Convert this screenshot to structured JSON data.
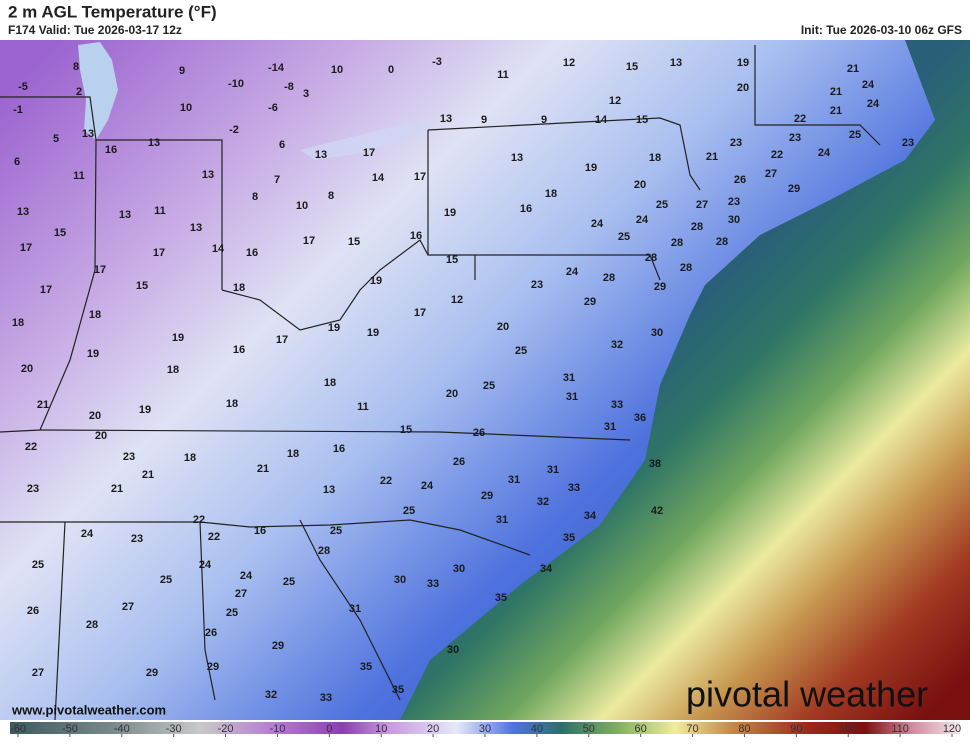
{
  "header": {
    "title": "2 m AGL Temperature (°F)",
    "valid": "F174 Valid: Tue 2026-03-17 12z",
    "init": "Init: Tue 2026-03-10 06z GFS"
  },
  "footer": {
    "website": "www.pivotalweather.com",
    "logo": "pivotal weather"
  },
  "colorbar": {
    "ticks": [
      -60,
      -50,
      -40,
      -30,
      -20,
      -10,
      0,
      10,
      20,
      30,
      40,
      50,
      60,
      70,
      80,
      90,
      100,
      110,
      120
    ]
  },
  "map": {
    "labels": [
      -5,
      2,
      8,
      -1,
      5,
      6,
      13,
      16,
      13,
      9,
      -10,
      -14,
      -8,
      10,
      -6,
      -2,
      3,
      10,
      0,
      -3,
      11,
      12,
      15,
      13,
      19,
      21,
      24,
      20,
      21,
      24,
      12,
      21,
      13,
      9,
      9,
      14,
      15,
      22,
      25,
      23,
      23,
      22,
      24,
      23,
      6,
      13,
      13,
      17,
      11,
      7,
      14,
      17,
      13,
      19,
      18,
      21,
      26,
      27,
      29,
      8,
      10,
      8,
      20,
      18,
      25,
      27,
      23,
      30,
      13,
      13,
      11,
      13,
      19,
      16,
      24,
      24,
      28,
      25,
      28,
      15,
      17,
      17,
      14,
      16,
      17,
      15,
      16,
      28,
      15,
      28,
      28,
      17,
      15,
      18,
      19,
      24,
      28,
      23,
      29,
      17,
      12,
      29,
      18,
      18,
      17,
      20,
      19,
      17,
      19,
      19,
      30,
      16,
      32,
      19,
      25,
      18,
      18,
      20,
      31,
      25,
      20,
      31,
      21,
      18,
      19,
      20,
      11,
      33,
      36,
      15,
      26,
      31,
      20,
      22,
      16,
      18,
      23,
      18,
      26,
      31,
      38,
      21,
      21,
      22,
      31,
      24,
      13,
      33,
      23,
      21,
      29,
      32,
      25,
      42,
      31,
      34,
      22,
      16,
      25,
      35,
      24,
      23,
      22,
      28,
      25,
      24,
      24,
      30,
      34,
      25,
      25,
      27,
      30,
      33,
      35,
      27,
      31,
      26,
      25,
      28,
      26,
      29,
      30,
      35,
      29,
      27,
      29,
      35,
      32,
      33
    ]
  }
}
